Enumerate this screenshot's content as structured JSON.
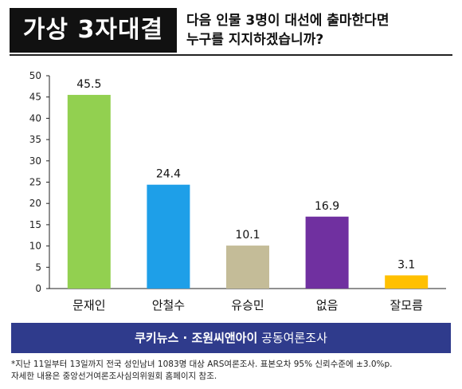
{
  "header": {
    "title": "가상 3자대결",
    "question_line1": "다음 인물 3명이 대선에 출마한다면",
    "question_line2": "누구를 지지하겠습니까?"
  },
  "chart_data": {
    "type": "bar",
    "categories": [
      "문재인",
      "안철수",
      "유승민",
      "없음",
      "잘모름"
    ],
    "values": [
      45.5,
      24.4,
      10.1,
      16.9,
      3.1
    ],
    "value_labels": [
      "45.5",
      "24.4",
      "10.1",
      "16.9",
      "3.1"
    ],
    "colors": [
      "#92d050",
      "#1e9fe8",
      "#c4bc98",
      "#7030a0",
      "#ffc000"
    ],
    "ylim": [
      0,
      50
    ],
    "yticks": [
      "0",
      "5",
      "10",
      "15",
      "20",
      "25",
      "30",
      "35",
      "40",
      "45",
      "50"
    ],
    "grid": false,
    "legend": "none"
  },
  "source": {
    "brand": "쿠키뉴스 · 조원씨앤아이",
    "suffix": "공동여론조사"
  },
  "footnote": {
    "line1": "*지난 11일부터 13일까지 전국 성인남녀 1083명 대상 ARS여론조사. 표본오차 95% 신뢰수준에 ±3.0%p.",
    "line2": "자세한 내용은 중앙선거여론조사심의위원회 홈페이지 참조."
  }
}
